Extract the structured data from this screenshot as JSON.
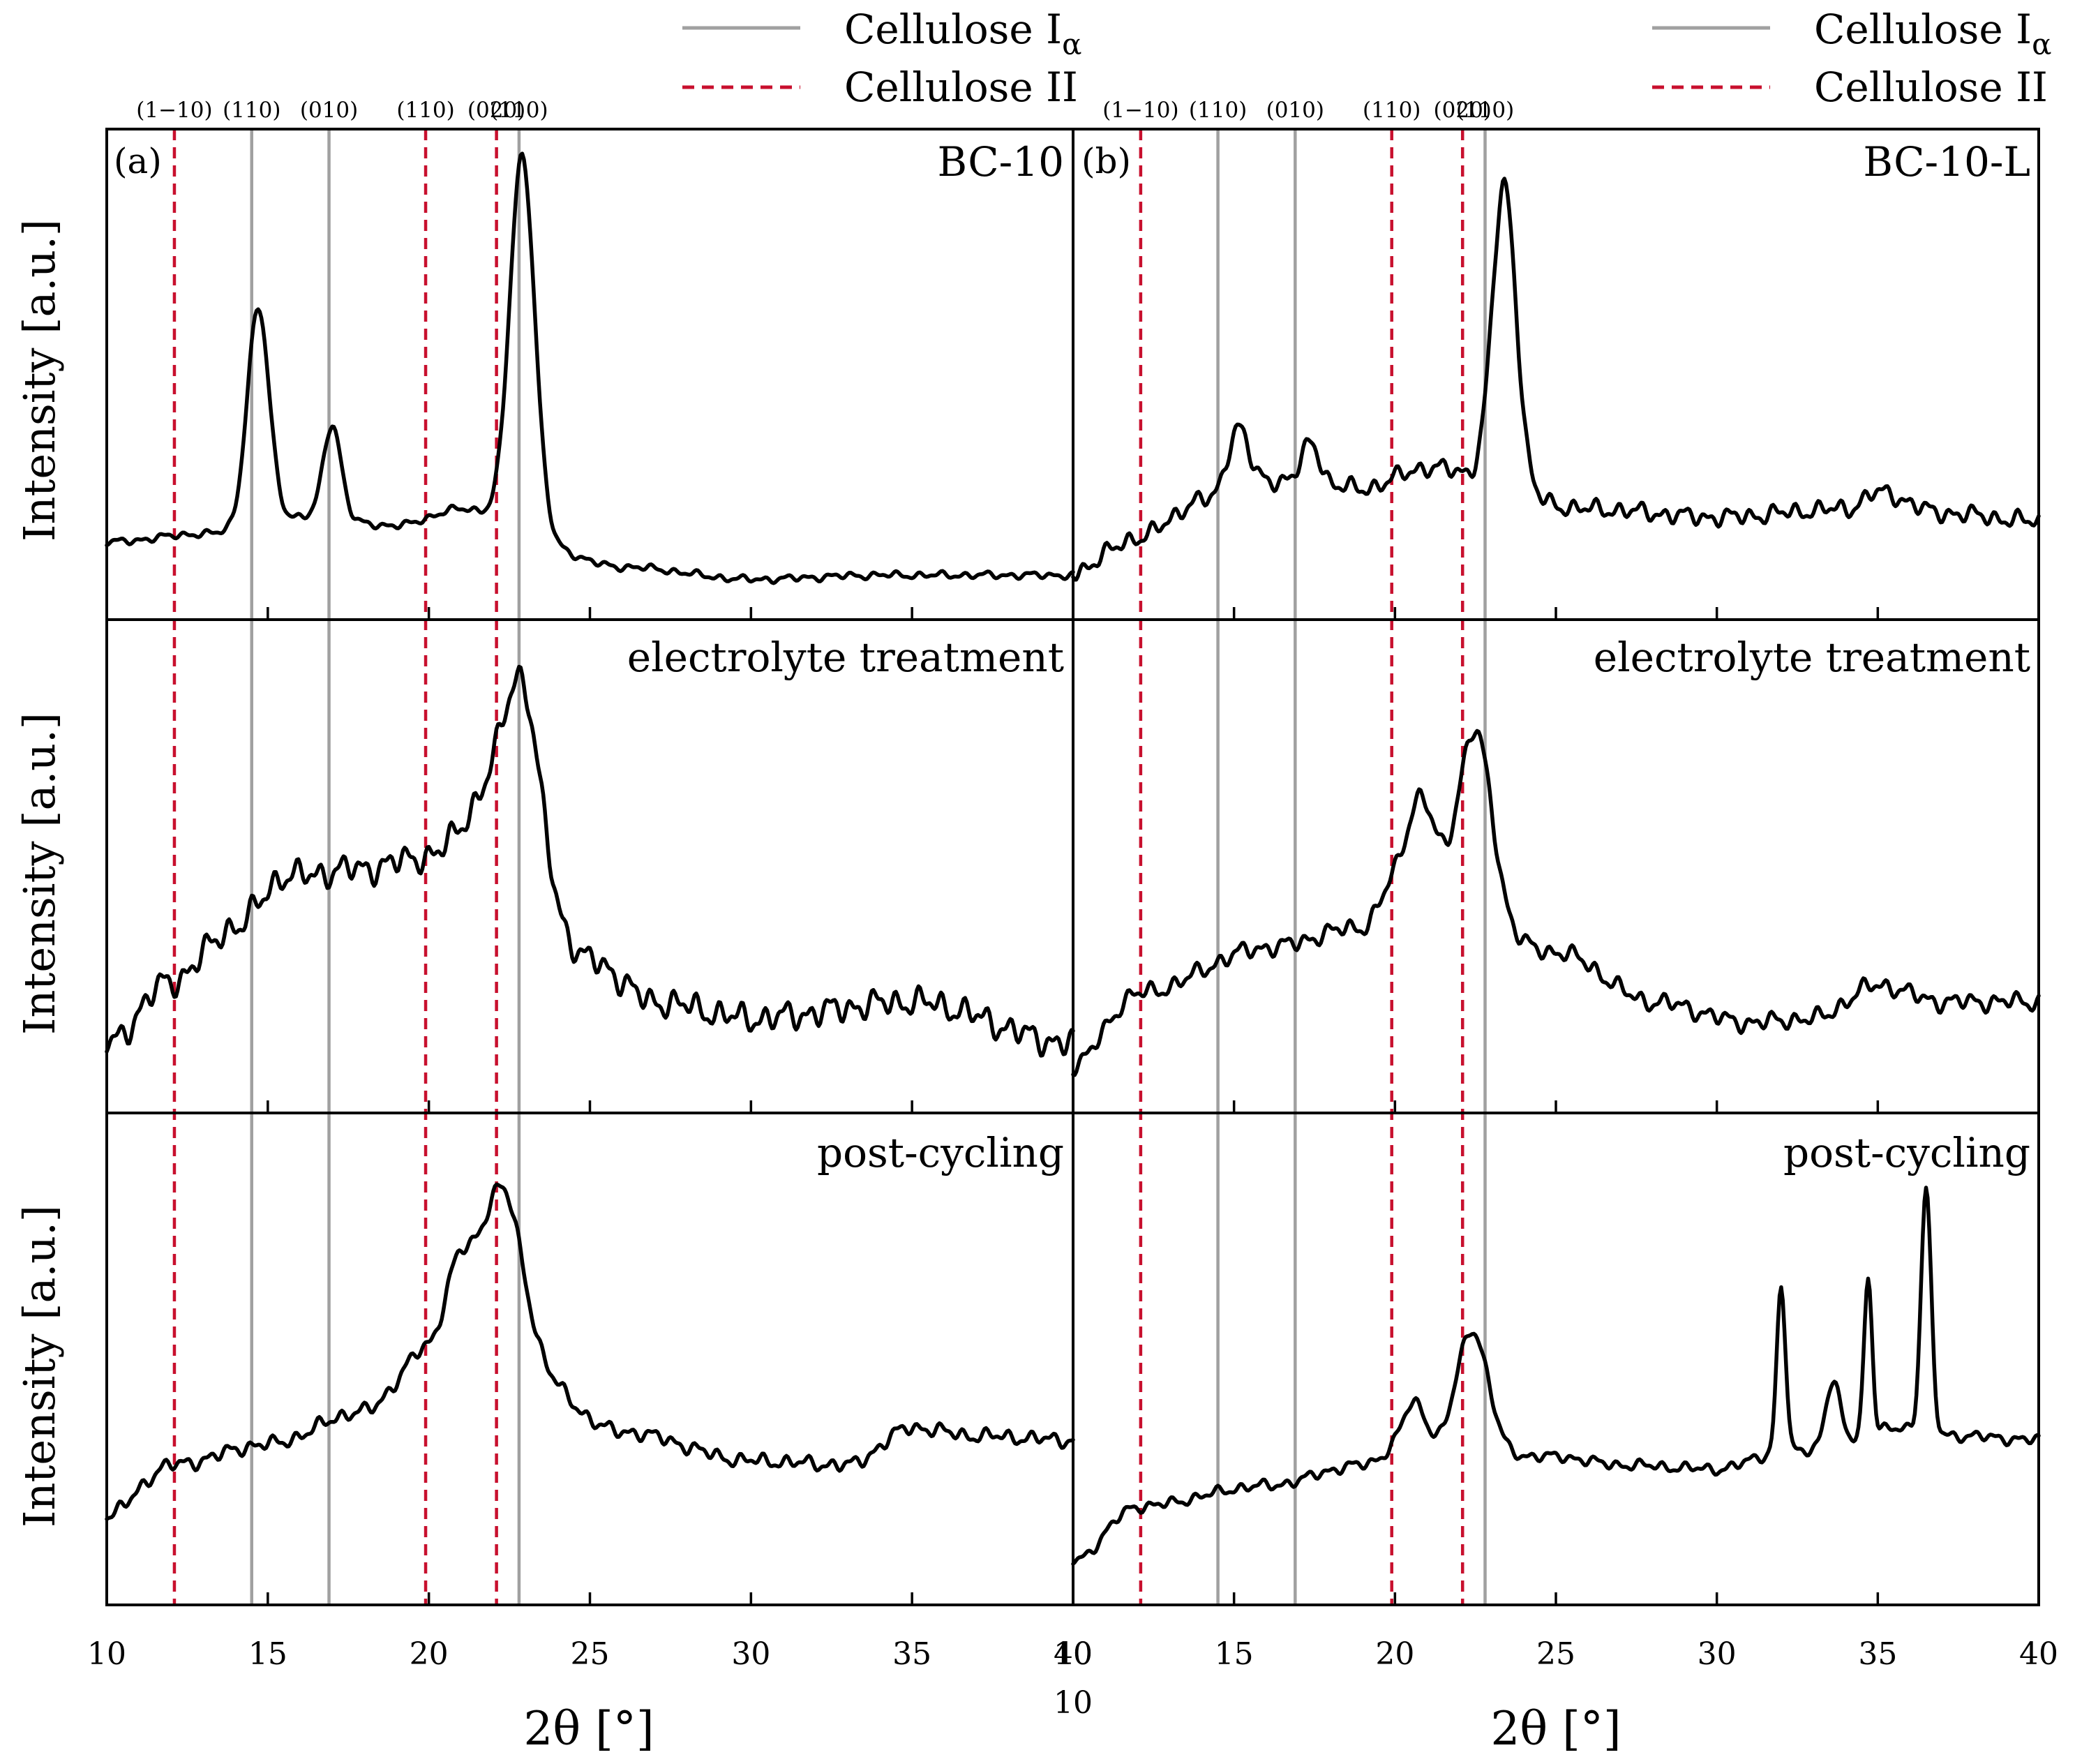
{
  "chart_data": {
    "type": "line",
    "xlabel": "2θ [°]",
    "ylabel": "Intensity [a.u.]",
    "xlim": [
      10,
      40
    ],
    "xticks": [
      10,
      15,
      20,
      25,
      30,
      35,
      40
    ],
    "stray_tick_label": "10",
    "legend": {
      "position": "top",
      "entries": [
        {
          "label": "Cellulose I",
          "subscript": "α",
          "style": "solid",
          "color": "#a0a0a0"
        },
        {
          "label": "Cellulose II",
          "subscript": "",
          "style": "dashed",
          "color": "#c8102e"
        }
      ]
    },
    "reference_lines": [
      {
        "pos": 12.1,
        "hkl": "(1−10)",
        "phase": "Cellulose II"
      },
      {
        "pos": 14.5,
        "hkl": "(110)",
        "phase": "Cellulose I"
      },
      {
        "pos": 16.9,
        "hkl": "(010)",
        "phase": "Cellulose I"
      },
      {
        "pos": 19.9,
        "hkl": "(110)",
        "phase": "Cellulose II"
      },
      {
        "pos": 22.1,
        "hkl": "(020)",
        "phase": "Cellulose II"
      },
      {
        "pos": 22.8,
        "hkl": "(110)",
        "phase": "Cellulose I"
      }
    ],
    "panels": [
      {
        "label": "(a)",
        "column": "left",
        "rows": [
          {
            "annotation": "BC-10",
            "baseline": [
              [
                10,
                0.12
              ],
              [
                13,
                0.14
              ],
              [
                16,
                0.18
              ],
              [
                19,
                0.16
              ],
              [
                21,
                0.2
              ],
              [
                26,
                0.06
              ],
              [
                30,
                0.03
              ],
              [
                34,
                0.04
              ],
              [
                40,
                0.04
              ]
            ],
            "peaks": [
              [
                14.7,
                0.52,
                0.55
              ],
              [
                17.0,
                0.23,
                0.45
              ],
              [
                22.9,
                0.9,
                0.62
              ]
            ],
            "noise": 0.01,
            "seed": 11
          },
          {
            "annotation": "electrolyte treatment",
            "baseline": [
              [
                10,
                0.1
              ],
              [
                12,
                0.25
              ],
              [
                14,
                0.38
              ],
              [
                15.5,
                0.5
              ],
              [
                18,
                0.52
              ],
              [
                20,
                0.55
              ],
              [
                22,
                0.7
              ],
              [
                25,
                0.3
              ],
              [
                27,
                0.2
              ],
              [
                30,
                0.16
              ],
              [
                35,
                0.2
              ],
              [
                40,
                0.1
              ]
            ],
            "peaks": [
              [
                22.9,
                0.36,
                0.85
              ]
            ],
            "noise": 0.04,
            "seed": 23
          },
          {
            "annotation": "post-cycling",
            "baseline": [
              [
                10,
                0.15
              ],
              [
                12,
                0.27
              ],
              [
                15,
                0.32
              ],
              [
                18,
                0.4
              ],
              [
                20,
                0.55
              ],
              [
                21,
                0.66
              ],
              [
                26,
                0.35
              ],
              [
                30,
                0.28
              ],
              [
                33,
                0.27
              ],
              [
                35,
                0.36
              ],
              [
                37,
                0.34
              ],
              [
                40,
                0.33
              ]
            ],
            "peaks": [
              [
                22.3,
                0.33,
                0.95
              ],
              [
                20.9,
                0.1,
                0.7
              ]
            ],
            "noise": 0.02,
            "seed": 37
          }
        ]
      },
      {
        "label": "(b)",
        "column": "right",
        "rows": [
          {
            "annotation": "BC-10-L",
            "baseline": [
              [
                10,
                0.05
              ],
              [
                12,
                0.13
              ],
              [
                14,
                0.22
              ],
              [
                16,
                0.27
              ],
              [
                19,
                0.25
              ],
              [
                21,
                0.3
              ],
              [
                26,
                0.2
              ],
              [
                30,
                0.18
              ],
              [
                34,
                0.2
              ],
              [
                35,
                0.24
              ],
              [
                37,
                0.19
              ],
              [
                40,
                0.17
              ]
            ],
            "peaks": [
              [
                15.1,
                0.15,
                0.5
              ],
              [
                17.4,
                0.1,
                0.45
              ],
              [
                23.4,
                0.73,
                0.6
              ]
            ],
            "noise": 0.025,
            "seed": 41
          },
          {
            "annotation": "electrolyte treatment",
            "baseline": [
              [
                10,
                0.05
              ],
              [
                12,
                0.22
              ],
              [
                16,
                0.33
              ],
              [
                19,
                0.38
              ],
              [
                20,
                0.48
              ],
              [
                25,
                0.32
              ],
              [
                28,
                0.2
              ],
              [
                31,
                0.15
              ],
              [
                33,
                0.16
              ],
              [
                35,
                0.24
              ],
              [
                37,
                0.2
              ],
              [
                40,
                0.2
              ]
            ],
            "peaks": [
              [
                20.8,
                0.22,
                0.7
              ],
              [
                22.5,
                0.45,
                0.85
              ]
            ],
            "noise": 0.025,
            "seed": 53
          },
          {
            "annotation": "post-cycling",
            "baseline": [
              [
                10,
                0.04
              ],
              [
                12,
                0.17
              ],
              [
                16,
                0.22
              ],
              [
                19,
                0.27
              ],
              [
                20,
                0.3
              ],
              [
                25,
                0.29
              ],
              [
                27,
                0.27
              ],
              [
                30,
                0.26
              ],
              [
                32,
                0.3
              ],
              [
                36,
                0.36
              ],
              [
                37.5,
                0.34
              ],
              [
                40,
                0.33
              ]
            ],
            "peaks": [
              [
                20.6,
                0.12,
                0.6
              ],
              [
                22.4,
                0.3,
                0.8
              ],
              [
                32.0,
                0.4,
                0.22
              ],
              [
                33.6,
                0.15,
                0.35
              ],
              [
                34.7,
                0.38,
                0.2
              ],
              [
                36.5,
                0.58,
                0.25
              ]
            ],
            "noise": 0.015,
            "seed": 67
          }
        ]
      }
    ]
  }
}
